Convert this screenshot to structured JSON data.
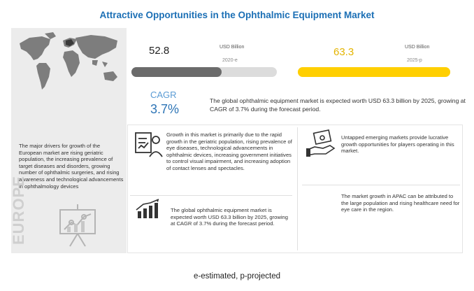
{
  "title": "Attractive Opportunities in the Ophthalmic Equipment Market",
  "chart_data": {
    "type": "bar",
    "categories": [
      "2020-e",
      "2025-p"
    ],
    "values": [
      52.8,
      63.3
    ],
    "value_labels": [
      "52.8",
      "63.3"
    ],
    "unit": "USD Billion",
    "colors": [
      "#6b6b6b",
      "#ffcf00"
    ],
    "cagr_label": "CAGR",
    "cagr_value": "3.7%"
  },
  "summary": "The global ophthalmic equipment market is expected worth USD 63.3 billion by 2025, growing at CAGR of 3.7% during the forecast period.",
  "left_panel": {
    "region": "EUROPE",
    "text": "The major drivers for growth of the European market are rising geriatric population, the increasing prevalence of target diseases and disorders, growing number of ophthalmic surgeries, and rising awareness and technological advancements in ophthalmology devices"
  },
  "insights": {
    "growth_drivers": "Growth in this market is primarily due to the rapid growth in the geriatric population, rising prevalence of eye diseases, technological advancements in ophthalmic devices, increasing government initiatives to control visual impairment, and increasing adoption of contact lenses and spectacles.",
    "market_size": "The global ophthalmic equipment market is expected worth USD 63.3 billion by 2025, growing at CAGR of 3.7% during the forecast period.",
    "emerging_markets": "Untapped emerging markets provide lucrative growth opportunities for players operating in this market.",
    "apac": "The market growth in APAC can be attributed to the large population and rising healthcare need for eye care in the region."
  },
  "footnote": "e-estimated, p-projected",
  "icons": {
    "world_map": "world-map-icon",
    "europe_illustration": "presentation-chart-icon",
    "drivers": "doctor-chart-icon",
    "market": "bar-growth-icon",
    "emerging": "money-hand-icon"
  }
}
